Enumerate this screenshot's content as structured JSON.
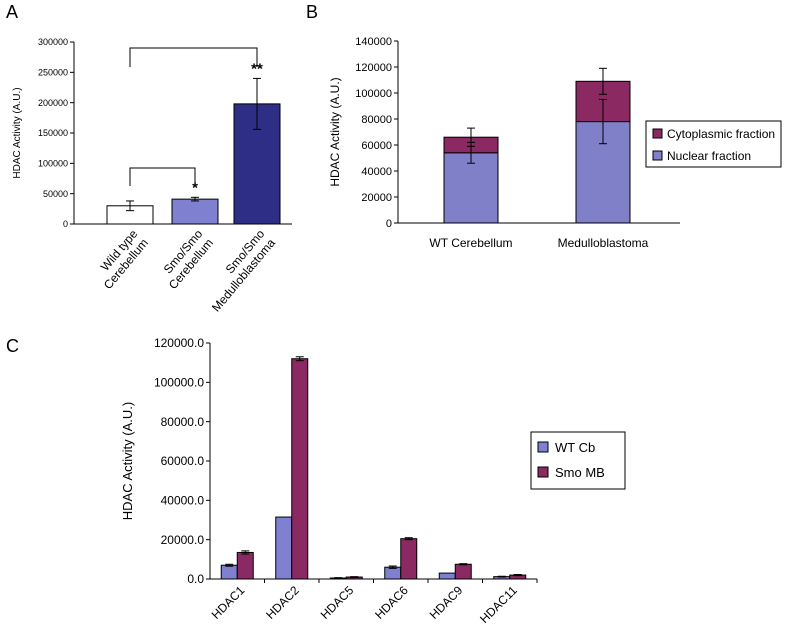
{
  "panels": {
    "a": "A",
    "b": "B",
    "c": "C"
  },
  "chart_data": [
    {
      "panel": "A",
      "type": "bar",
      "ylabel": "HDAC Activity (A.U.)",
      "ylim": [
        0,
        300000
      ],
      "yticks": [
        "0",
        "50000",
        "100000",
        "150000",
        "200000",
        "250000",
        "300000"
      ],
      "categories": [
        [
          "Wild type",
          "Cerebellum"
        ],
        [
          "Smo/Smo",
          "Cerebellum"
        ],
        [
          "Smo/Smo",
          "Medulloblastoma"
        ]
      ],
      "values": [
        30000,
        41000,
        198000
      ],
      "errors": [
        8000,
        3000,
        42000
      ],
      "colors": [
        "#ffffff",
        "#8080d0",
        "#2e2e86"
      ],
      "significance": [
        "",
        "*",
        "**"
      ],
      "grid": false
    },
    {
      "panel": "B",
      "type": "bar",
      "stacked": true,
      "ylabel": "HDAC Activity (A.U.)",
      "ylim": [
        0,
        140000
      ],
      "yticks": [
        "0",
        "20000",
        "40000",
        "60000",
        "80000",
        "100000",
        "120000",
        "140000"
      ],
      "categories": [
        "WT Cerebellum",
        "Medulloblastoma"
      ],
      "series": [
        {
          "name": "Nuclear fraction",
          "values": [
            54000,
            78000
          ],
          "errors": [
            8000,
            17000
          ],
          "color": "#8080c8"
        },
        {
          "name": "Cytoplasmic fraction",
          "values": [
            12000,
            31000
          ],
          "errors": [
            7000,
            10000
          ],
          "color": "#8b2a62"
        }
      ],
      "legend_order": [
        "Cytoplasmic fraction",
        "Nuclear fraction"
      ],
      "legend": "right",
      "grid": false
    },
    {
      "panel": "C",
      "type": "bar",
      "ylabel": "HDAC Activity (A.U.)",
      "ylim": [
        0,
        120000
      ],
      "yticks": [
        "0.0",
        "20000.0",
        "40000.0",
        "60000.0",
        "80000.0",
        "100000.0",
        "120000.0"
      ],
      "categories": [
        "HDAC1",
        "HDAC2",
        "HDAC5",
        "HDAC6",
        "HDAC9",
        "HDAC11"
      ],
      "series": [
        {
          "name": "WT Cb",
          "values": [
            7000,
            31500,
            500,
            6000,
            3000,
            1200
          ],
          "errors": [
            500,
            0,
            200,
            600,
            0,
            200
          ],
          "color": "#8080d0"
        },
        {
          "name": "Smo MB",
          "values": [
            13500,
            112000,
            1000,
            20500,
            7500,
            2000
          ],
          "errors": [
            800,
            1000,
            200,
            500,
            300,
            300
          ],
          "color": "#8b2a62"
        }
      ],
      "legend": "right",
      "grid": false
    }
  ]
}
